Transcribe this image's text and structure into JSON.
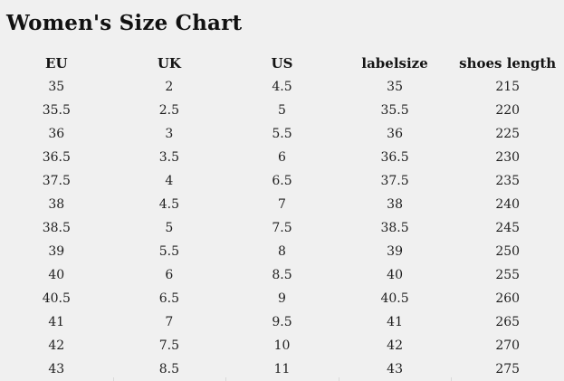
{
  "title": "Women's Size Chart",
  "theme": {
    "background": "#f0f0f0",
    "text": "#1a1a1a",
    "divider": "#d9d9d9"
  },
  "table": {
    "columns": [
      "EU",
      "UK",
      "US",
      "labelsize",
      "shoes length"
    ],
    "rows": [
      [
        "35",
        "2",
        "4.5",
        "35",
        "215"
      ],
      [
        "35.5",
        "2.5",
        "5",
        "35.5",
        "220"
      ],
      [
        "36",
        "3",
        "5.5",
        "36",
        "225"
      ],
      [
        "36.5",
        "3.5",
        "6",
        "36.5",
        "230"
      ],
      [
        "37.5",
        "4",
        "6.5",
        "37.5",
        "235"
      ],
      [
        "38",
        "4.5",
        "7",
        "38",
        "240"
      ],
      [
        "38.5",
        "5",
        "7.5",
        "38.5",
        "245"
      ],
      [
        "39",
        "5.5",
        "8",
        "39",
        "250"
      ],
      [
        "40",
        "6",
        "8.5",
        "40",
        "255"
      ],
      [
        "40.5",
        "6.5",
        "9",
        "40.5",
        "260"
      ],
      [
        "41",
        "7",
        "9.5",
        "41",
        "265"
      ],
      [
        "42",
        "7.5",
        "10",
        "42",
        "270"
      ],
      [
        "43",
        "8.5",
        "11",
        "43",
        "275"
      ]
    ]
  }
}
